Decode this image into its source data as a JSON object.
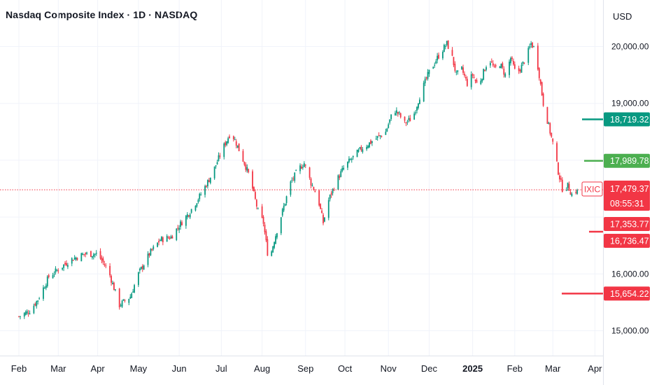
{
  "header": {
    "title": "Nasdaq Composite Index · 1D · NASDAQ",
    "currency": "USD"
  },
  "chart_data": {
    "type": "candlestick",
    "ylim": [
      14600,
      20550
    ],
    "y_ticks": [
      {
        "value": 15000,
        "label": "15,000.00"
      },
      {
        "value": 16000,
        "label": "16,000.00"
      },
      {
        "value": 19000,
        "label": "19,000.00"
      },
      {
        "value": 20000,
        "label": "20,000.00"
      }
    ],
    "x_ticks": [
      {
        "label": "Feb",
        "year": false
      },
      {
        "label": "Mar",
        "year": false
      },
      {
        "label": "Apr",
        "year": false
      },
      {
        "label": "May",
        "year": false
      },
      {
        "label": "Jun",
        "year": false
      },
      {
        "label": "Jul",
        "year": false
      },
      {
        "label": "Aug",
        "year": false
      },
      {
        "label": "Sep",
        "year": false
      },
      {
        "label": "Oct",
        "year": false
      },
      {
        "label": "Nov",
        "year": false
      },
      {
        "label": "Dec",
        "year": false
      },
      {
        "label": "2025",
        "year": true
      },
      {
        "label": "Feb",
        "year": false
      },
      {
        "label": "Mar",
        "year": false
      },
      {
        "label": "Apr",
        "year": false
      }
    ],
    "x_tick_days": [
      0,
      29,
      58,
      88,
      118,
      149,
      179,
      211,
      240,
      272,
      302,
      334,
      365,
      393,
      424
    ],
    "anchors": [
      [
        0,
        15250
      ],
      [
        8,
        15350
      ],
      [
        14,
        15550
      ],
      [
        22,
        15950
      ],
      [
        30,
        16100
      ],
      [
        38,
        16250
      ],
      [
        48,
        16350
      ],
      [
        58,
        16350
      ],
      [
        66,
        16050
      ],
      [
        74,
        15450
      ],
      [
        82,
        15600
      ],
      [
        88,
        16000
      ],
      [
        96,
        16350
      ],
      [
        104,
        16600
      ],
      [
        112,
        16650
      ],
      [
        118,
        16850
      ],
      [
        126,
        17100
      ],
      [
        134,
        17400
      ],
      [
        142,
        17750
      ],
      [
        150,
        18200
      ],
      [
        156,
        18500
      ],
      [
        160,
        18300
      ],
      [
        166,
        17950
      ],
      [
        170,
        17700
      ],
      [
        176,
        17100
      ],
      [
        180,
        16900
      ],
      [
        184,
        16200
      ],
      [
        188,
        16600
      ],
      [
        194,
        17100
      ],
      [
        200,
        17600
      ],
      [
        206,
        17850
      ],
      [
        210,
        17950
      ],
      [
        215,
        17600
      ],
      [
        220,
        17350
      ],
      [
        224,
        16900
      ],
      [
        228,
        17300
      ],
      [
        234,
        17650
      ],
      [
        240,
        17900
      ],
      [
        246,
        18050
      ],
      [
        252,
        18200
      ],
      [
        258,
        18300
      ],
      [
        264,
        18400
      ],
      [
        270,
        18500
      ],
      [
        276,
        18900
      ],
      [
        280,
        18800
      ],
      [
        284,
        18650
      ],
      [
        290,
        18750
      ],
      [
        296,
        19200
      ],
      [
        302,
        19550
      ],
      [
        308,
        19800
      ],
      [
        312,
        19950
      ],
      [
        315,
        20050
      ],
      [
        318,
        19900
      ],
      [
        322,
        19500
      ],
      [
        326,
        19600
      ],
      [
        330,
        19350
      ],
      [
        334,
        19500
      ],
      [
        338,
        19300
      ],
      [
        342,
        19550
      ],
      [
        346,
        19800
      ],
      [
        350,
        19600
      ],
      [
        354,
        19700
      ],
      [
        358,
        19500
      ],
      [
        362,
        19800
      ],
      [
        366,
        19500
      ],
      [
        370,
        19650
      ],
      [
        374,
        19850
      ],
      [
        377,
        20050
      ],
      [
        380,
        19950
      ],
      [
        383,
        19500
      ],
      [
        386,
        19000
      ],
      [
        390,
        18600
      ],
      [
        393,
        18300
      ],
      [
        397,
        17800
      ],
      [
        400,
        17500
      ],
      [
        404,
        17550
      ],
      [
        407,
        17400
      ],
      [
        411,
        17480
      ]
    ],
    "last_value": 17479.37,
    "price_tags": [
      {
        "name": "tag-18719",
        "value": 18719.32,
        "label": "18,719.32",
        "color": "#089981"
      },
      {
        "name": "tag-17989",
        "value": 17989.78,
        "label": "17,989.78",
        "color": "#4caf50"
      },
      {
        "name": "tag-17353",
        "value": 17353.77,
        "label": "17,353.77",
        "color": "#f23645"
      },
      {
        "name": "tag-16736",
        "value": 16736.47,
        "label": "16,736.47",
        "color": "#f23645"
      },
      {
        "name": "tag-15654",
        "value": 15654.22,
        "label": "15,654.22",
        "color": "#f23645"
      }
    ],
    "symbol_tag": {
      "label": "IXIC",
      "color": "#f23645"
    },
    "current_price": {
      "label": "17,479.37",
      "countdown": "08:55:31",
      "color": "#f23645"
    },
    "colors": {
      "up": "#089981",
      "down": "#f23645",
      "grid": "#f0f3fa",
      "axis": "#e0e3eb"
    }
  }
}
